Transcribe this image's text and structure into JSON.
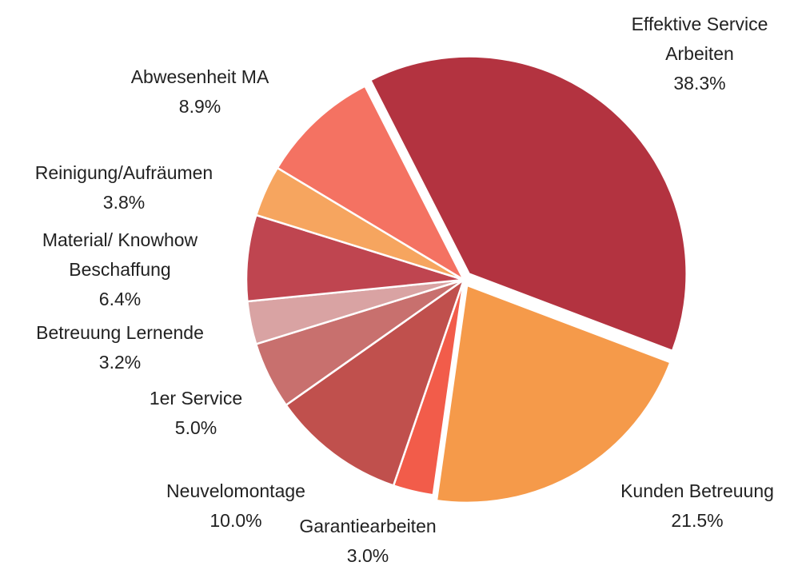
{
  "chart_data": {
    "type": "pie",
    "categories": [
      "Effektive Service Arbeiten",
      "Kunden Betreuung",
      "Garantiearbeiten",
      "Neuvelomontage",
      "1er Service",
      "Betreuung Lernende",
      "Material/ Knowhow Beschaffung",
      "Reinigung/Aufräumen",
      "Abwesenheit MA"
    ],
    "values": [
      38.3,
      21.5,
      3.0,
      10.0,
      5.0,
      3.2,
      6.4,
      3.8,
      8.9
    ],
    "value_labels": [
      "38.3%",
      "21.5%",
      "3.0%",
      "10.0%",
      "5.0%",
      "3.2%",
      "6.4%",
      "3.8%",
      "8.9%"
    ],
    "colors": [
      "#b33340",
      "#f59a4a",
      "#f25c4a",
      "#c0504d",
      "#c8706e",
      "#d9a3a3",
      "#bf4550",
      "#f6a55f",
      "#f47262"
    ]
  }
}
